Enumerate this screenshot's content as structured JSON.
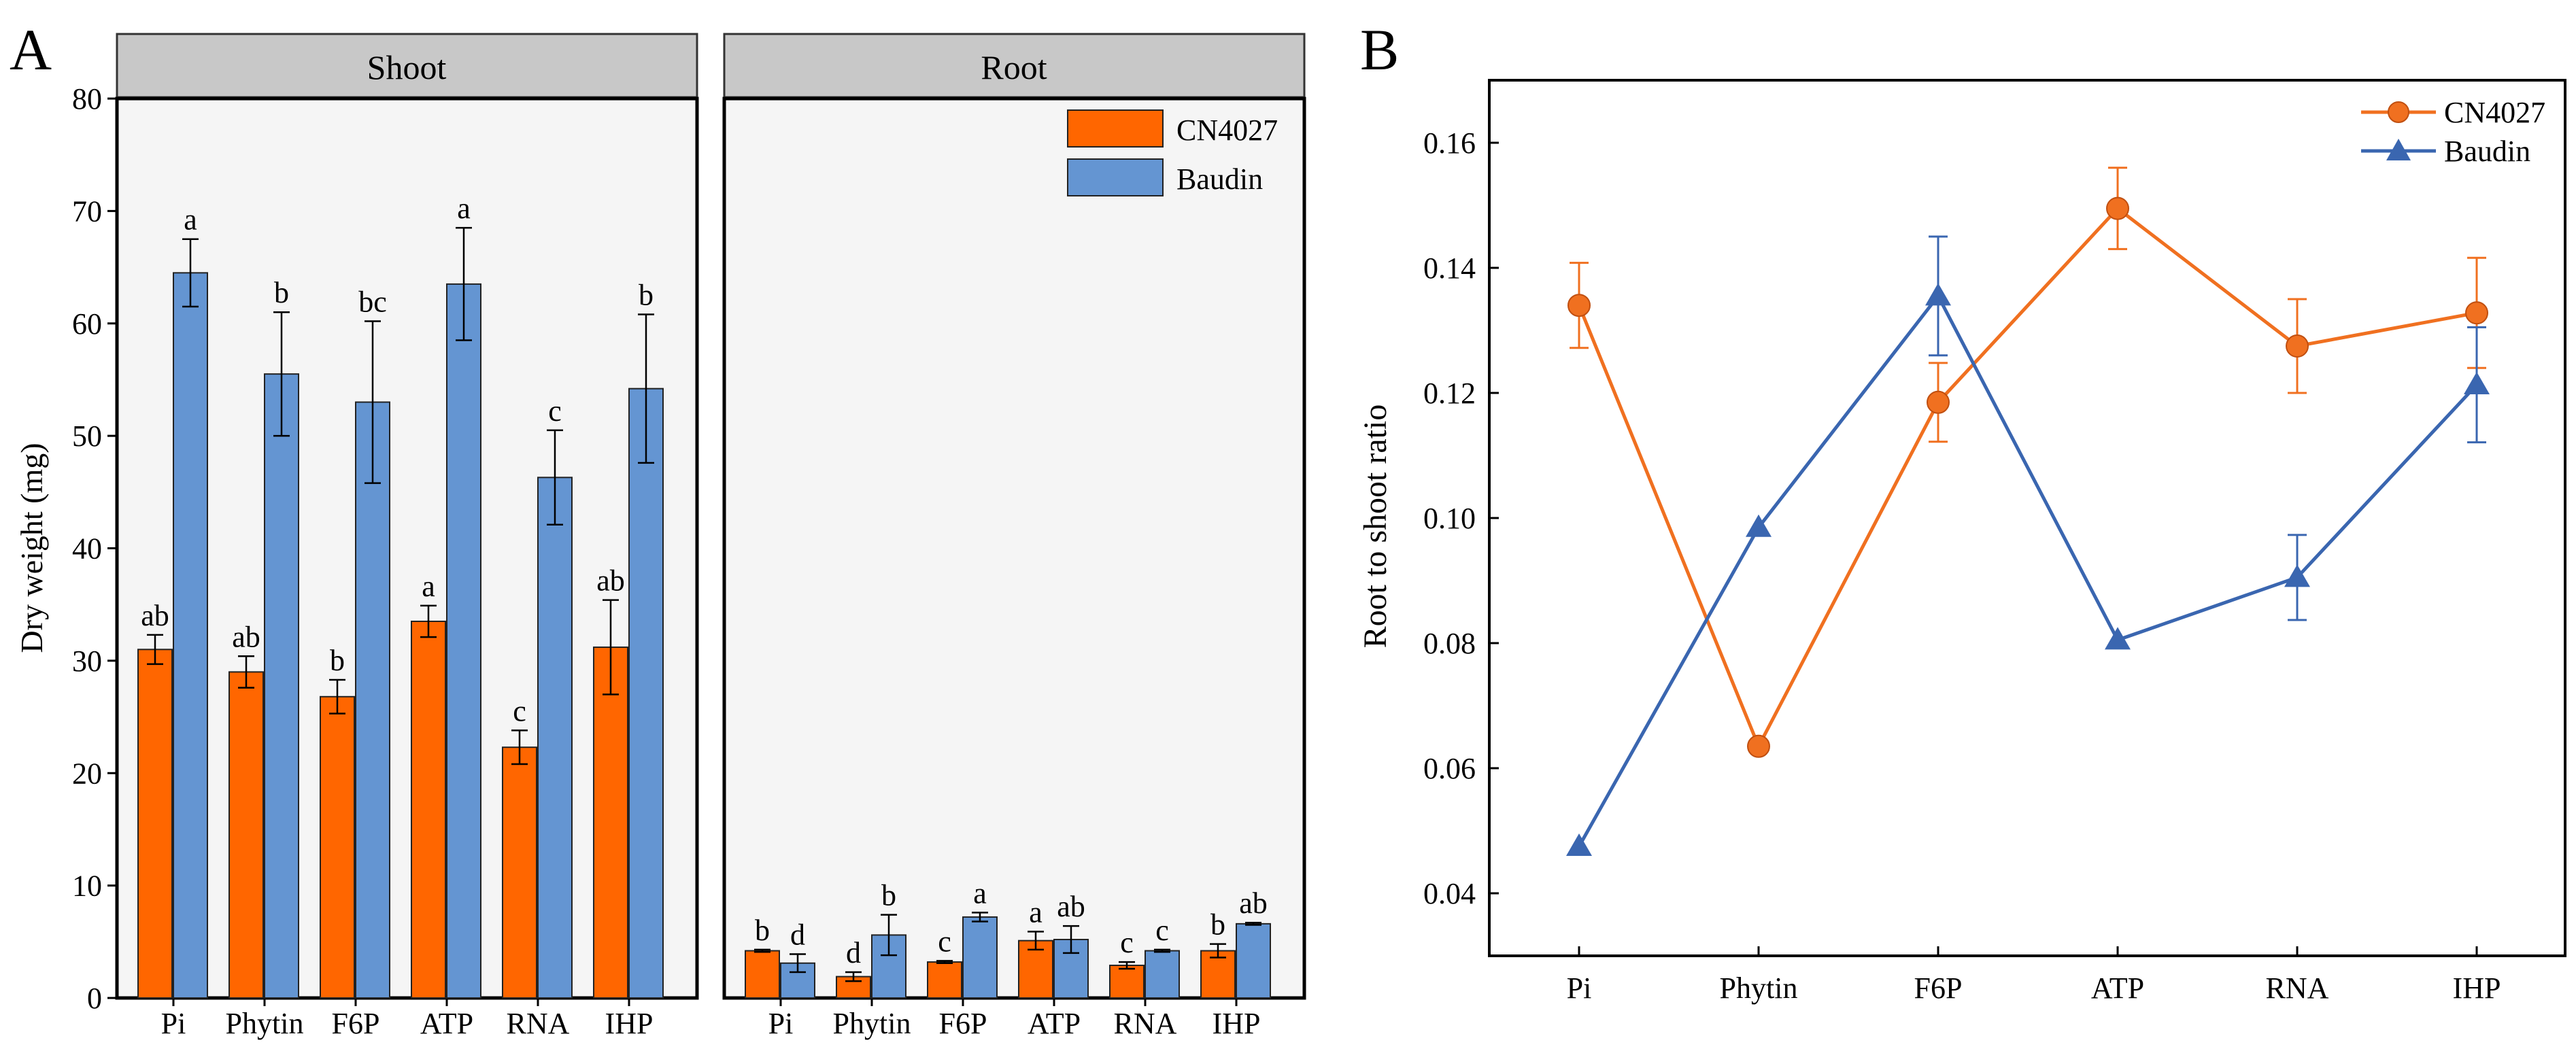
{
  "panel_labels": {
    "a": "A",
    "b": "B"
  },
  "colors": {
    "cn4027": "#FF6600",
    "baudin": "#6495D2",
    "line_cn4027": "#F07020",
    "line_baudin": "#3A66B0",
    "strip": "#c8c8c8",
    "plot_bg": "#f5f5f5"
  },
  "chart_data": [
    {
      "type": "bar",
      "facet": "Shoot",
      "categories": [
        "Pi",
        "Phytin",
        "F6P",
        "ATP",
        "RNA",
        "IHP"
      ],
      "ylabel": "Dry weight (mg)",
      "ylim": [
        0,
        80
      ],
      "yticks": [
        0,
        10,
        20,
        30,
        40,
        50,
        60,
        70,
        80
      ],
      "grid": false,
      "series": [
        {
          "name": "CN4027",
          "values": [
            31.0,
            29.0,
            26.8,
            33.5,
            22.3,
            31.2
          ],
          "errors": [
            1.3,
            1.4,
            1.5,
            1.4,
            1.5,
            4.2
          ],
          "letters": [
            "ab",
            "ab",
            "b",
            "a",
            "c",
            "ab"
          ]
        },
        {
          "name": "Baudin",
          "values": [
            64.5,
            55.5,
            53.0,
            63.5,
            46.3,
            54.2
          ],
          "errors": [
            3.0,
            5.5,
            7.2,
            5.0,
            4.2,
            6.6
          ],
          "letters": [
            "a",
            "b",
            "bc",
            "a",
            "c",
            "b"
          ]
        }
      ]
    },
    {
      "type": "bar",
      "facet": "Root",
      "categories": [
        "Pi",
        "Phytin",
        "F6P",
        "ATP",
        "RNA",
        "IHP"
      ],
      "ylim": [
        0,
        80
      ],
      "legend": "top-right",
      "series": [
        {
          "name": "CN4027",
          "values": [
            4.2,
            1.9,
            3.2,
            5.1,
            2.9,
            4.2
          ],
          "errors": [
            0.1,
            0.4,
            0.1,
            0.8,
            0.3,
            0.6
          ],
          "letters": [
            "b",
            "d",
            "c",
            "a",
            "c",
            "b"
          ]
        },
        {
          "name": "Baudin",
          "values": [
            3.1,
            5.6,
            7.2,
            5.2,
            4.2,
            6.6
          ],
          "errors": [
            0.8,
            1.8,
            0.4,
            1.2,
            0.1,
            0.1
          ],
          "letters": [
            "d",
            "b",
            "a",
            "ab",
            "c",
            "ab"
          ]
        }
      ]
    },
    {
      "type": "line",
      "categories": [
        "Pi",
        "Phytin",
        "F6P",
        "ATP",
        "RNA",
        "IHP"
      ],
      "ylabel": "Root to shoot ratio",
      "ylim": [
        0.03,
        0.17
      ],
      "yticks": [
        "0.04",
        "0.06",
        "0.08",
        "0.10",
        "0.12",
        "0.14",
        "0.16"
      ],
      "legend": "top-right",
      "grid": false,
      "series": [
        {
          "name": "CN4027",
          "marker": "circle",
          "values": [
            0.134,
            0.0635,
            0.1185,
            0.1495,
            0.1275,
            0.1328
          ],
          "errors": [
            0.0068,
            0.0,
            0.0063,
            0.0065,
            0.0075,
            0.0088
          ]
        },
        {
          "name": "Baudin",
          "marker": "triangle",
          "values": [
            0.0475,
            0.0985,
            0.1355,
            0.0805,
            0.0905,
            0.1213
          ],
          "errors": [
            0.0,
            0.0,
            0.0095,
            0.0,
            0.0068,
            0.0092
          ]
        }
      ]
    }
  ]
}
